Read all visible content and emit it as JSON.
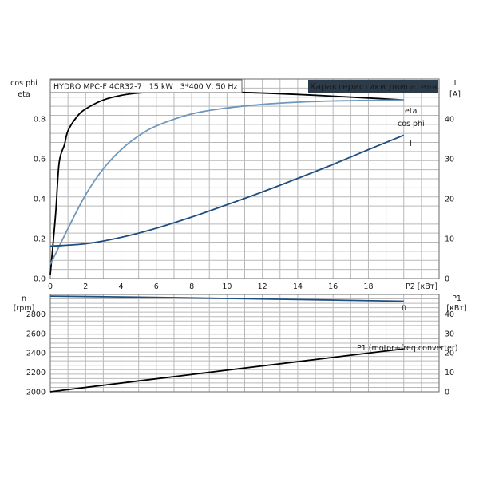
{
  "window": {
    "title_box": "HYDRO MPC-F 4CR32-7   15 kW   3*400 V, 50 Hz",
    "title_badge": "Характеристики двигателя"
  },
  "colors": {
    "eta": "#000000",
    "cosphi": "#6f97bb",
    "current": "#1f4e80",
    "speed": "#1f4e80",
    "p1": "#000000",
    "badge_bg": "#2c3b4a",
    "badge_text": "#ffffff"
  },
  "chart_data": [
    {
      "type": "line",
      "left_axis_label_1": "cos phi",
      "left_axis_label_2": "eta",
      "right_axis_label_1": "I",
      "right_axis_label_2": "[A]",
      "xlabel": "P2 [кВт]",
      "xlim": [
        0,
        22
      ],
      "xticks": [
        "0",
        "2",
        "4",
        "6",
        "8",
        "10",
        "12",
        "14",
        "16",
        "18"
      ],
      "ylim_left": [
        0,
        1.0
      ],
      "yticks_left": [
        "0.0",
        "0.2",
        "0.4",
        "0.6",
        "0.8"
      ],
      "ylim_right": [
        0,
        50
      ],
      "yticks_right": [
        "0",
        "10",
        "20",
        "30",
        "40"
      ],
      "grid": true,
      "series": [
        {
          "name": "eta",
          "axis": "left",
          "points": [
            [
              0,
              0.02
            ],
            [
              0.3,
              0.32
            ],
            [
              0.5,
              0.58
            ],
            [
              0.8,
              0.67
            ],
            [
              1,
              0.74
            ],
            [
              1.5,
              0.81
            ],
            [
              2,
              0.85
            ],
            [
              3,
              0.895
            ],
            [
              4,
              0.918
            ],
            [
              5,
              0.93
            ],
            [
              6,
              0.935
            ],
            [
              8,
              0.937
            ],
            [
              10,
              0.935
            ],
            [
              12,
              0.93
            ],
            [
              14,
              0.923
            ],
            [
              16,
              0.914
            ],
            [
              18,
              0.905
            ],
            [
              20,
              0.895
            ]
          ]
        },
        {
          "name": "cos phi",
          "axis": "left",
          "points": [
            [
              0,
              0.07
            ],
            [
              1,
              0.25
            ],
            [
              2,
              0.42
            ],
            [
              3,
              0.55
            ],
            [
              4,
              0.645
            ],
            [
              5,
              0.715
            ],
            [
              6,
              0.765
            ],
            [
              8,
              0.825
            ],
            [
              10,
              0.855
            ],
            [
              12,
              0.873
            ],
            [
              14,
              0.884
            ],
            [
              16,
              0.89
            ],
            [
              18,
              0.893
            ],
            [
              20,
              0.895
            ]
          ]
        },
        {
          "name": "I",
          "axis": "right",
          "points": [
            [
              0,
              8.1
            ],
            [
              2,
              8.7
            ],
            [
              4,
              10.3
            ],
            [
              6,
              12.6
            ],
            [
              8,
              15.4
            ],
            [
              10,
              18.5
            ],
            [
              12,
              21.7
            ],
            [
              14,
              25.1
            ],
            [
              16,
              28.6
            ],
            [
              18,
              32.3
            ],
            [
              20,
              35.9
            ]
          ]
        }
      ]
    },
    {
      "type": "line",
      "left_axis_label_1": "n",
      "left_axis_label_2": "[rpm]",
      "right_axis_label_1": "P1",
      "right_axis_label_2": "[кВт]",
      "xlim": [
        0,
        22
      ],
      "ylim_left": [
        2000,
        3000
      ],
      "yticks_left": [
        "2000",
        "2200",
        "2400",
        "2600",
        "2800"
      ],
      "ylim_right": [
        0,
        50
      ],
      "yticks_right": [
        "0",
        "10",
        "20",
        "30",
        "40"
      ],
      "grid": true,
      "series": [
        {
          "name": "n",
          "axis": "left",
          "points": [
            [
              0,
              2983
            ],
            [
              5,
              2972
            ],
            [
              10,
              2959
            ],
            [
              15,
              2945
            ],
            [
              20,
              2930
            ]
          ]
        },
        {
          "name": "P1 (motor+freq.converter)",
          "axis": "right",
          "points": [
            [
              0,
              0
            ],
            [
              5,
              5.6
            ],
            [
              10,
              11.1
            ],
            [
              15,
              16.6
            ],
            [
              20,
              22.1
            ]
          ]
        }
      ]
    }
  ]
}
